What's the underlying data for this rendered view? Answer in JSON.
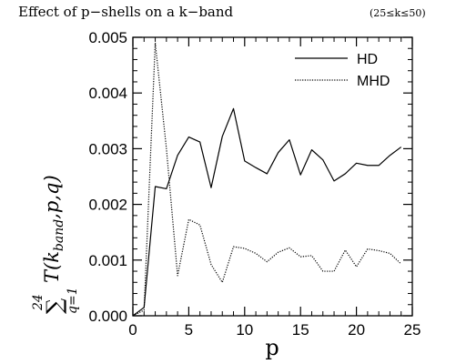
{
  "chart_data": {
    "type": "line",
    "title": "Effect of p−shells on a k−band",
    "title_range": "(25≤k≤50)",
    "xlabel": "p",
    "ylabel": {
      "sum_sign": "∑",
      "sum_upper": "24",
      "sum_lower": "q=1",
      "expr": "T(k",
      "expr_sub": "band",
      "expr_tail": ",p,q)"
    },
    "xlim": [
      0,
      25
    ],
    "ylim": [
      0,
      0.005
    ],
    "x_ticks": [
      0,
      5,
      10,
      15,
      20,
      25
    ],
    "x_tick_labels": [
      "0",
      "5",
      "10",
      "15",
      "20",
      "25"
    ],
    "y_ticks": [
      0,
      0.001,
      0.002,
      0.003,
      0.004,
      0.005
    ],
    "y_tick_labels": [
      "0.000",
      "0.001",
      "0.002",
      "0.003",
      "0.004",
      "0.005"
    ],
    "grid": false,
    "legend_position": "top-right",
    "x": [
      0,
      1,
      2,
      3,
      4,
      5,
      6,
      7,
      8,
      9,
      10,
      11,
      12,
      13,
      14,
      15,
      16,
      17,
      18,
      19,
      20,
      21,
      22,
      23,
      24
    ],
    "series": [
      {
        "name": "HD",
        "style": "solid",
        "values": [
          0.0,
          0.00015,
          0.00232,
          0.00228,
          0.00288,
          0.00321,
          0.00312,
          0.0023,
          0.00322,
          0.00372,
          0.00278,
          0.00266,
          0.00255,
          0.00293,
          0.00316,
          0.00253,
          0.00298,
          0.0028,
          0.00242,
          0.00255,
          0.00274,
          0.0027,
          0.0027,
          0.00288,
          0.00303
        ]
      },
      {
        "name": "MHD",
        "style": "dotted",
        "values": [
          0.0,
          0.0001,
          0.0049,
          0.003,
          0.00072,
          0.00173,
          0.00163,
          0.00092,
          0.0006,
          0.00124,
          0.00121,
          0.00112,
          0.00097,
          0.00114,
          0.00122,
          0.00106,
          0.00108,
          0.0008,
          0.0008,
          0.00118,
          0.00088,
          0.0012,
          0.00117,
          0.00112,
          0.00093
        ]
      }
    ]
  }
}
